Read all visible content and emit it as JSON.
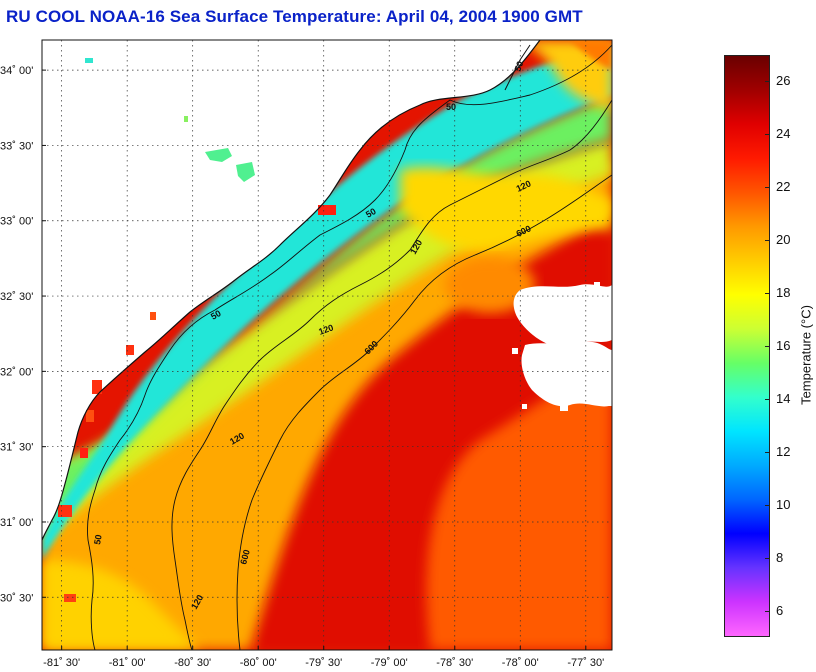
{
  "title": "RU COOL  NOAA-16  Sea Surface Temperature:  April 04, 2004 1900 GMT",
  "map": {
    "lat_labels": [
      {
        "value": 34.0,
        "label": "34˚ 00'"
      },
      {
        "value": 33.5,
        "label": "33˚ 30'"
      },
      {
        "value": 33.0,
        "label": "33˚ 00'"
      },
      {
        "value": 32.5,
        "label": "32˚ 30'"
      },
      {
        "value": 32.0,
        "label": "32˚ 00'"
      },
      {
        "value": 31.5,
        "label": "31˚ 30'"
      },
      {
        "value": 31.0,
        "label": "31˚ 00'"
      },
      {
        "value": 30.5,
        "label": "30˚ 30'"
      }
    ],
    "lon_labels": [
      {
        "value": -81.5,
        "label": "-81˚ 30'"
      },
      {
        "value": -81.0,
        "label": "-81˚ 00'"
      },
      {
        "value": -80.5,
        "label": "-80˚ 30'"
      },
      {
        "value": -80.0,
        "label": "-80˚ 00'"
      },
      {
        "value": -79.5,
        "label": "-79˚ 30'"
      },
      {
        "value": -79.0,
        "label": "-79˚ 00'"
      },
      {
        "value": -78.5,
        "label": "-78˚ 30'"
      },
      {
        "value": -78.0,
        "label": "-78˚ 00'"
      },
      {
        "value": -77.5,
        "label": "-77˚ 30'"
      }
    ],
    "lat_range": [
      30.15,
      34.2
    ],
    "lon_range": [
      -81.65,
      -77.3
    ],
    "contour_labels": [
      "50",
      "50",
      "50",
      "50",
      "50",
      "120",
      "120",
      "120",
      "120",
      "120",
      "600",
      "600",
      "600"
    ],
    "land_color": "#ffffff",
    "cloud_color": "#ffffff"
  },
  "colorbar": {
    "axis_title": "Temperature (°C)",
    "min": 5,
    "max": 27,
    "ticks": [
      "6",
      "8",
      "10",
      "12",
      "14",
      "16",
      "18",
      "20",
      "22",
      "24",
      "26"
    ],
    "tick_values": [
      6,
      8,
      10,
      12,
      14,
      16,
      18,
      20,
      22,
      24,
      26
    ],
    "colors": [
      "#ff66ff",
      "#cc33ff",
      "#6633ff",
      "#0000ff",
      "#0066ff",
      "#00aaff",
      "#00e5ff",
      "#33ffcc",
      "#66ff66",
      "#ccff33",
      "#ffff00",
      "#ffcc00",
      "#ff9900",
      "#ff5500",
      "#ff1a00",
      "#e00000",
      "#a00000",
      "#6a0000"
    ]
  }
}
